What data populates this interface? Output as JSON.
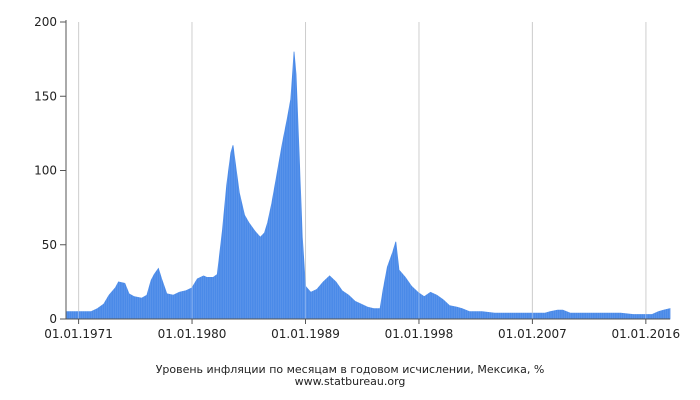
{
  "chart_data": {
    "type": "area",
    "title": "Уровень инфляции по месяцам в годовом исчислении, Мексика, %",
    "source": "www.statbureau.org",
    "xlabel": "",
    "ylabel": "",
    "x_range": [
      "1970-01-01",
      "2017-12-01"
    ],
    "ylim": [
      0,
      200
    ],
    "y_ticks": [
      0,
      50,
      100,
      150,
      200
    ],
    "x_ticks": [
      "01.01.1971",
      "01.01.1980",
      "01.01.1989",
      "01.01.1998",
      "01.01.2007",
      "01.01.2016"
    ],
    "grid": true,
    "legend": "none",
    "fill_color": "#4a8ae8",
    "series": [
      {
        "points": [
          [
            "1970-01-01",
            5
          ],
          [
            "1971-01-01",
            5
          ],
          [
            "1972-01-01",
            5
          ],
          [
            "1972-07-01",
            7
          ],
          [
            "1973-01-01",
            10
          ],
          [
            "1973-06-01",
            16
          ],
          [
            "1973-12-01",
            21
          ],
          [
            "1974-03-01",
            25
          ],
          [
            "1974-09-01",
            24
          ],
          [
            "1975-01-01",
            17
          ],
          [
            "1975-06-01",
            15
          ],
          [
            "1976-01-01",
            14
          ],
          [
            "1976-06-01",
            16
          ],
          [
            "1976-10-01",
            26
          ],
          [
            "1977-01-01",
            30
          ],
          [
            "1977-05-01",
            34
          ],
          [
            "1977-08-01",
            27
          ],
          [
            "1978-01-01",
            17
          ],
          [
            "1978-07-01",
            16
          ],
          [
            "1979-01-01",
            18
          ],
          [
            "1979-07-01",
            19
          ],
          [
            "1980-01-01",
            21
          ],
          [
            "1980-06-01",
            27
          ],
          [
            "1980-12-01",
            29
          ],
          [
            "1981-03-01",
            28
          ],
          [
            "1981-09-01",
            28
          ],
          [
            "1982-01-01",
            30
          ],
          [
            "1982-06-01",
            60
          ],
          [
            "1982-10-01",
            90
          ],
          [
            "1983-02-01",
            112
          ],
          [
            "1983-04-01",
            117
          ],
          [
            "1983-06-01",
            106
          ],
          [
            "1983-10-01",
            85
          ],
          [
            "1984-03-01",
            70
          ],
          [
            "1984-07-01",
            65
          ],
          [
            "1985-01-01",
            59
          ],
          [
            "1985-06-01",
            55
          ],
          [
            "1985-10-01",
            58
          ],
          [
            "1986-01-01",
            65
          ],
          [
            "1986-05-01",
            78
          ],
          [
            "1986-10-01",
            98
          ],
          [
            "1987-03-01",
            118
          ],
          [
            "1987-08-01",
            136
          ],
          [
            "1987-11-01",
            148
          ],
          [
            "1988-01-01",
            168
          ],
          [
            "1988-02-01",
            180
          ],
          [
            "1988-04-01",
            165
          ],
          [
            "1988-07-01",
            110
          ],
          [
            "1988-10-01",
            55
          ],
          [
            "1989-01-01",
            22
          ],
          [
            "1989-06-01",
            18
          ],
          [
            "1989-12-01",
            20
          ],
          [
            "1990-06-01",
            25
          ],
          [
            "1990-12-01",
            29
          ],
          [
            "1991-06-01",
            25
          ],
          [
            "1991-12-01",
            19
          ],
          [
            "1992-06-01",
            16
          ],
          [
            "1992-12-01",
            12
          ],
          [
            "1993-06-01",
            10
          ],
          [
            "1993-12-01",
            8
          ],
          [
            "1994-06-01",
            7
          ],
          [
            "1994-12-01",
            7
          ],
          [
            "1995-03-01",
            20
          ],
          [
            "1995-07-01",
            35
          ],
          [
            "1995-12-01",
            45
          ],
          [
            "1996-03-01",
            52
          ],
          [
            "1996-06-01",
            33
          ],
          [
            "1996-12-01",
            28
          ],
          [
            "1997-06-01",
            22
          ],
          [
            "1997-12-01",
            18
          ],
          [
            "1998-06-01",
            15
          ],
          [
            "1998-12-01",
            18
          ],
          [
            "1999-06-01",
            16
          ],
          [
            "1999-12-01",
            13
          ],
          [
            "2000-06-01",
            9
          ],
          [
            "2001-01-01",
            8
          ],
          [
            "2001-06-01",
            7
          ],
          [
            "2002-01-01",
            5
          ],
          [
            "2003-01-01",
            5
          ],
          [
            "2004-01-01",
            4
          ],
          [
            "2005-01-01",
            4
          ],
          [
            "2006-01-01",
            4
          ],
          [
            "2007-01-01",
            4
          ],
          [
            "2008-01-01",
            4
          ],
          [
            "2008-06-01",
            5
          ],
          [
            "2009-01-01",
            6
          ],
          [
            "2009-06-01",
            6
          ],
          [
            "2010-01-01",
            4
          ],
          [
            "2011-01-01",
            4
          ],
          [
            "2012-01-01",
            4
          ],
          [
            "2013-01-01",
            4
          ],
          [
            "2014-01-01",
            4
          ],
          [
            "2015-01-01",
            3
          ],
          [
            "2016-01-01",
            3
          ],
          [
            "2016-07-01",
            3
          ],
          [
            "2017-01-01",
            5
          ],
          [
            "2017-06-01",
            6
          ],
          [
            "2017-12-01",
            7
          ]
        ]
      }
    ]
  }
}
